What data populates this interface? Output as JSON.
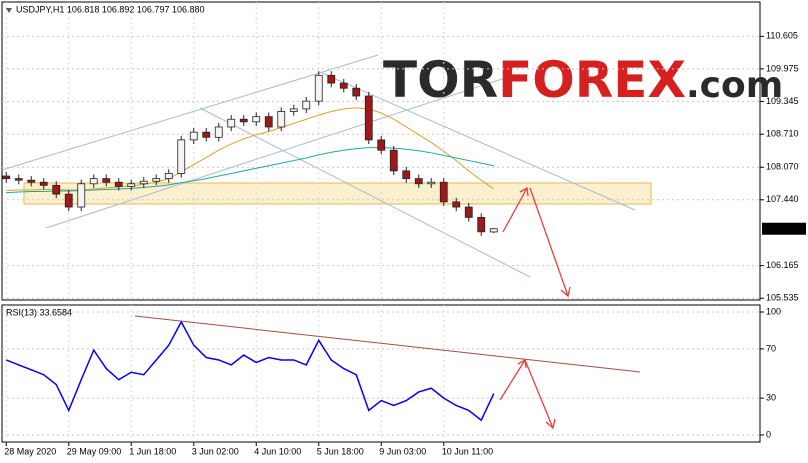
{
  "chart_data": [
    {
      "type": "candlestick",
      "title": "USDJPY,H1 106.818 106.892 106.797 106.880",
      "logo": {
        "part1": "TOR",
        "part2": "FOREX",
        "part3": ".com"
      },
      "categories": [
        "28 May 2020",
        null,
        null,
        null,
        null,
        "29 May 09:00",
        null,
        null,
        null,
        null,
        "1 Jun 18:00",
        null,
        null,
        null,
        null,
        "3 Jun 02:00",
        null,
        null,
        null,
        null,
        "4 Jun 10:00",
        null,
        null,
        null,
        null,
        "5 Jun 18:00",
        null,
        null,
        null,
        null,
        "9 Jun 03:00",
        null,
        null,
        null,
        null,
        "10 Jun 11:00",
        null,
        null,
        null,
        null
      ],
      "series": {
        "open": [
          107.9,
          107.85,
          107.82,
          107.78,
          107.72,
          107.55,
          107.3,
          107.75,
          107.85,
          107.78,
          107.7,
          107.75,
          107.8,
          107.85,
          107.95,
          108.6,
          108.75,
          108.65,
          108.85,
          109.0,
          108.95,
          109.05,
          108.85,
          109.15,
          109.2,
          109.35,
          109.85,
          109.7,
          109.6,
          109.45,
          108.6,
          108.4,
          108.0,
          107.85,
          107.75,
          107.78,
          107.4,
          107.3,
          107.1,
          106.818
        ],
        "high": [
          107.98,
          107.93,
          107.9,
          107.86,
          107.8,
          107.63,
          107.83,
          107.93,
          107.93,
          107.86,
          107.83,
          107.88,
          107.93,
          108.03,
          108.68,
          108.83,
          108.83,
          108.93,
          109.08,
          109.08,
          109.13,
          109.13,
          109.23,
          109.28,
          109.43,
          109.93,
          109.93,
          109.78,
          109.68,
          109.53,
          108.68,
          108.48,
          108.08,
          107.93,
          107.86,
          107.86,
          107.48,
          107.38,
          107.18,
          106.892
        ],
        "low": [
          107.77,
          107.74,
          107.7,
          107.64,
          107.47,
          107.22,
          107.22,
          107.67,
          107.7,
          107.62,
          107.62,
          107.67,
          107.72,
          107.77,
          107.87,
          108.52,
          108.57,
          108.57,
          108.77,
          108.87,
          108.87,
          108.77,
          108.77,
          109.07,
          109.12,
          109.27,
          109.62,
          109.52,
          109.37,
          108.52,
          108.32,
          107.92,
          107.77,
          107.67,
          107.67,
          107.32,
          107.22,
          107.02,
          106.74,
          106.797
        ],
        "close": [
          107.85,
          107.82,
          107.78,
          107.72,
          107.55,
          107.3,
          107.75,
          107.85,
          107.78,
          107.7,
          107.75,
          107.8,
          107.85,
          107.95,
          108.6,
          108.75,
          108.65,
          108.85,
          109.0,
          108.95,
          109.05,
          108.85,
          109.15,
          109.2,
          109.35,
          109.85,
          109.7,
          109.6,
          109.45,
          108.6,
          108.4,
          108.0,
          107.85,
          107.75,
          107.78,
          107.4,
          107.3,
          107.1,
          106.82,
          106.88
        ]
      },
      "up_color": "#f4f4f4",
      "down_color": "#a01818",
      "moving_averages": [
        {
          "color": "#e0a030",
          "values": [
            107.62,
            107.63,
            107.63,
            107.64,
            107.64,
            107.63,
            107.63,
            107.65,
            107.67,
            107.69,
            107.71,
            107.74,
            107.78,
            107.85,
            107.98,
            108.12,
            108.26,
            108.4,
            108.52,
            108.62,
            108.7,
            108.76,
            108.84,
            108.92,
            109.0,
            109.08,
            109.15,
            109.2,
            109.22,
            109.2,
            109.12,
            109.0,
            108.85,
            108.7,
            108.55,
            108.38,
            108.2,
            108.0,
            107.82,
            107.65
          ]
        },
        {
          "color": "#20a8a0",
          "values": [
            107.58,
            107.59,
            107.6,
            107.6,
            107.61,
            107.61,
            107.62,
            107.63,
            107.64,
            107.65,
            107.66,
            107.68,
            107.7,
            107.73,
            107.77,
            107.81,
            107.85,
            107.9,
            107.95,
            108.0,
            108.05,
            108.1,
            108.15,
            108.2,
            108.25,
            108.31,
            108.36,
            108.4,
            108.43,
            108.45,
            108.45,
            108.44,
            108.42,
            108.39,
            108.35,
            108.3,
            108.25,
            108.2,
            108.15,
            108.1
          ]
        }
      ],
      "price_marker": {
        "value": 106.88,
        "label": "106.880"
      },
      "ylim": [
        105.5,
        111.27
      ],
      "yticks": [
        105.535,
        106.165,
        {
          "value": 107.44,
          "label": "107.440"
        },
        {
          "value": 108.07,
          "label": "108.070"
        },
        {
          "value": 108.71,
          "label": "108.710"
        },
        109.345,
        109.975,
        110.605
      ],
      "grid": true
    },
    {
      "type": "line",
      "title": "RSI(13) 33.6584",
      "color": "#0000ff",
      "values": [
        61,
        57,
        53,
        49,
        41,
        20,
        45,
        69,
        54,
        45,
        51,
        49,
        61,
        73,
        92,
        73,
        63,
        61,
        57,
        65,
        59,
        63,
        61,
        61,
        57,
        77,
        61,
        54,
        49,
        20,
        28,
        24,
        28,
        35,
        38,
        30,
        24,
        20,
        12,
        33.6584
      ],
      "ylim": [
        -5.7,
        105.7
      ],
      "yticks": [
        0,
        30,
        70,
        100
      ],
      "grid": true
    }
  ]
}
